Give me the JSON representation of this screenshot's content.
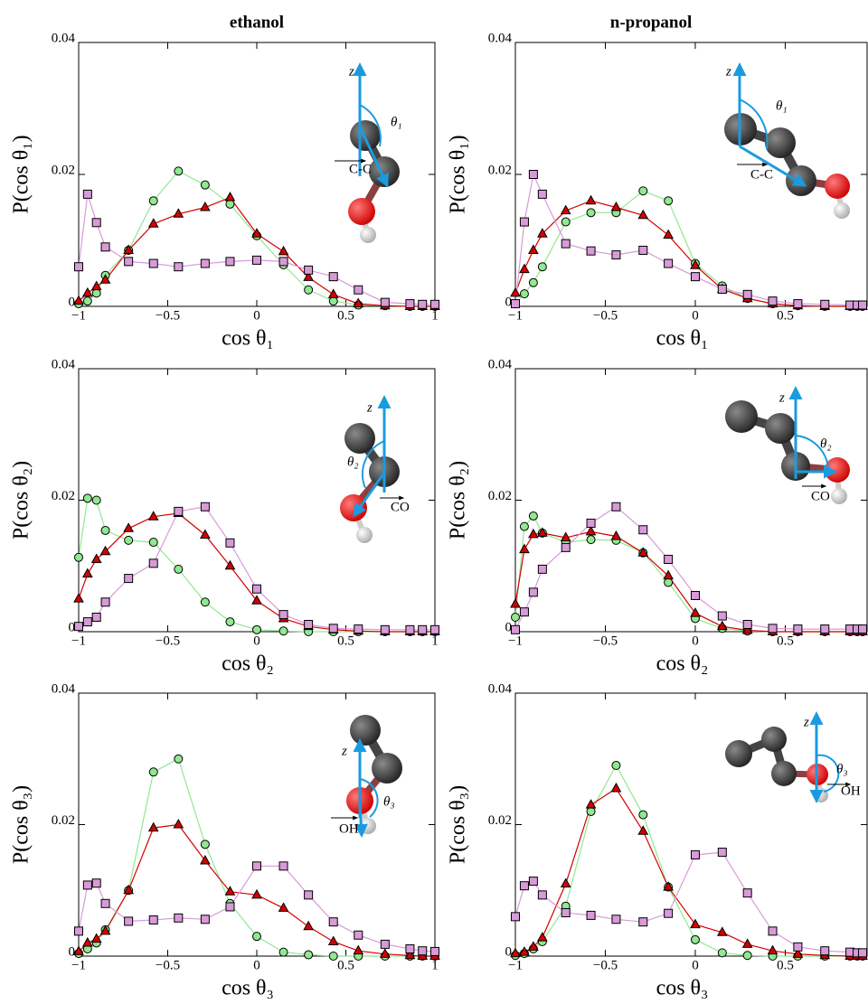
{
  "chart_data": [
    {
      "type": "line",
      "title": "ethanol",
      "xlabel": "cos θ₁",
      "ylabel": "P(cos θ₁)",
      "annotations": [
        "z",
        "θ₁",
        "C-C"
      ],
      "xlim": [
        -1,
        1
      ],
      "ylim": [
        0,
        0.04
      ],
      "xticks": [
        {
          "value": -1,
          "label": "−1"
        },
        {
          "value": -0.5,
          "label": "−0.5"
        },
        0,
        0.5,
        1
      ],
      "yticks": [
        0,
        0.02,
        0.04
      ],
      "x": [
        -1,
        -0.95,
        -0.9,
        -0.85,
        -0.72,
        -0.58,
        -0.44,
        -0.29,
        -0.15,
        0,
        0.15,
        0.29,
        0.43,
        0.57,
        0.72,
        0.86,
        0.93,
        1
      ],
      "series": [
        {
          "color": "#90e890",
          "marker": "circle",
          "values": [
            0.0004,
            0.0008,
            0.002,
            0.0047,
            0.0085,
            0.016,
            0.0205,
            0.0184,
            0.0155,
            0.0107,
            0.0063,
            0.0025,
            0.0008,
            0.0002,
            0.0001,
            0,
            0,
            0
          ]
        },
        {
          "color": "#d40000",
          "marker": "triangle",
          "values": [
            0.0008,
            0.002,
            0.003,
            0.004,
            0.0085,
            0.0125,
            0.014,
            0.015,
            0.0165,
            0.011,
            0.0083,
            0.0044,
            0.0018,
            0.0004,
            0.0001,
            0,
            0,
            0
          ]
        },
        {
          "color": "#d89ad8",
          "marker": "square",
          "values": [
            0.006,
            0.017,
            0.0127,
            0.009,
            0.0068,
            0.0065,
            0.006,
            0.0065,
            0.0068,
            0.007,
            0.0068,
            0.0055,
            0.0045,
            0.0025,
            0.0006,
            0.0004,
            0.0003,
            0.0003
          ]
        }
      ]
    },
    {
      "type": "line",
      "title": "n-propanol",
      "xlabel": "cos θ₁",
      "ylabel": "P(cos θ₁)",
      "annotations": [
        "z",
        "θ₁",
        "C-C"
      ],
      "xlim": [
        -1,
        0.955
      ],
      "ylim": [
        0,
        0.04
      ],
      "xticks": [
        {
          "value": -1,
          "label": "−1"
        },
        {
          "value": -0.5,
          "label": "−0.5"
        },
        0,
        0.5
      ],
      "yticks": [
        0,
        0.02,
        0.04
      ],
      "x": [
        -1,
        -0.95,
        -0.9,
        -0.85,
        -0.72,
        -0.58,
        -0.44,
        -0.29,
        -0.15,
        0,
        0.15,
        0.29,
        0.43,
        0.57,
        0.72,
        0.86,
        0.9,
        0.93
      ],
      "series": [
        {
          "color": "#90e890",
          "marker": "circle",
          "values": [
            0.0004,
            0.0019,
            0.0036,
            0.006,
            0.0128,
            0.0142,
            0.0142,
            0.0175,
            0.016,
            0.0065,
            0.0031,
            0.0012,
            0.0004,
            0.0001,
            0,
            0,
            0,
            0
          ]
        },
        {
          "color": "#d40000",
          "marker": "triangle",
          "values": [
            0.002,
            0.0056,
            0.0085,
            0.011,
            0.0145,
            0.016,
            0.015,
            0.0138,
            0.0108,
            0.0062,
            0.0026,
            0.0012,
            0.0004,
            0.0001,
            0,
            0,
            0,
            0
          ]
        },
        {
          "color": "#d89ad8",
          "marker": "square",
          "values": [
            0.0004,
            0.0128,
            0.02,
            0.017,
            0.0095,
            0.0084,
            0.0078,
            0.0085,
            0.0065,
            0.0045,
            0.0026,
            0.0018,
            0.0008,
            0.0004,
            0.0003,
            0.0002,
            0.0002,
            0.0002
          ]
        }
      ]
    },
    {
      "type": "line",
      "xlabel": "cos θ₂",
      "ylabel": "P(cos θ₂)",
      "annotations": [
        "z",
        "θ₂",
        "CO"
      ],
      "xlim": [
        -1,
        1
      ],
      "ylim": [
        0,
        0.04
      ],
      "xticks": [
        {
          "value": -1,
          "label": "−1"
        },
        {
          "value": -0.5,
          "label": "−0.5"
        },
        0,
        0.5,
        1
      ],
      "yticks": [
        0,
        0.02,
        0.04
      ],
      "x": [
        -1,
        -0.95,
        -0.9,
        -0.85,
        -0.72,
        -0.58,
        -0.44,
        -0.29,
        -0.15,
        0,
        0.15,
        0.29,
        0.43,
        0.57,
        0.72,
        0.86,
        0.93,
        1
      ],
      "series": [
        {
          "color": "#90e890",
          "marker": "circle",
          "values": [
            0.0113,
            0.0203,
            0.02,
            0.0154,
            0.0139,
            0.0136,
            0.0095,
            0.0045,
            0.0015,
            0.0003,
            0.0001,
            0,
            0,
            0,
            0,
            0,
            0,
            0
          ]
        },
        {
          "color": "#d40000",
          "marker": "triangle",
          "values": [
            0.005,
            0.0088,
            0.011,
            0.0122,
            0.0157,
            0.0175,
            0.018,
            0.0147,
            0.01,
            0.0047,
            0.002,
            0.0008,
            0.0003,
            0.0001,
            0,
            0,
            0,
            0
          ]
        },
        {
          "color": "#d89ad8",
          "marker": "square",
          "values": [
            0.0008,
            0.0015,
            0.0022,
            0.0045,
            0.0081,
            0.0104,
            0.0183,
            0.019,
            0.0135,
            0.0065,
            0.0026,
            0.0011,
            0.0005,
            0.0004,
            0.0003,
            0.0003,
            0.0003,
            0.0003
          ]
        }
      ]
    },
    {
      "type": "line",
      "xlabel": "cos θ₂",
      "ylabel": "P(cos θ₂)",
      "annotations": [
        "z",
        "θ₂",
        "CO"
      ],
      "xlim": [
        -1,
        0.955
      ],
      "ylim": [
        0,
        0.04
      ],
      "xticks": [
        {
          "value": -1,
          "label": "−1"
        },
        {
          "value": -0.5,
          "label": "−0.5"
        },
        0,
        0.5
      ],
      "yticks": [
        0,
        0.02,
        0.04
      ],
      "x": [
        -1,
        -0.95,
        -0.9,
        -0.85,
        -0.72,
        -0.58,
        -0.44,
        -0.29,
        -0.15,
        0,
        0.15,
        0.29,
        0.43,
        0.57,
        0.72,
        0.86,
        0.9,
        0.93
      ],
      "series": [
        {
          "color": "#90e890",
          "marker": "circle",
          "values": [
            0.0022,
            0.016,
            0.0176,
            0.015,
            0.0136,
            0.014,
            0.0139,
            0.012,
            0.0075,
            0.002,
            0.0005,
            0.0001,
            0,
            0,
            0,
            0,
            0,
            0
          ]
        },
        {
          "color": "#d40000",
          "marker": "triangle",
          "values": [
            0.0042,
            0.0125,
            0.0148,
            0.015,
            0.0143,
            0.0152,
            0.0145,
            0.012,
            0.0085,
            0.0028,
            0.0008,
            0.0002,
            0,
            0,
            0,
            0,
            0,
            0
          ]
        },
        {
          "color": "#d89ad8",
          "marker": "square",
          "values": [
            0.0003,
            0.003,
            0.006,
            0.0095,
            0.0128,
            0.0165,
            0.019,
            0.0155,
            0.011,
            0.0055,
            0.0024,
            0.0011,
            0.0005,
            0.0004,
            0.0004,
            0.0004,
            0.0004,
            0.0004
          ]
        }
      ]
    },
    {
      "type": "line",
      "xlabel": "cos θ₃",
      "ylabel": "P(cos θ₃)",
      "annotations": [
        "z",
        "θ₃",
        "OH"
      ],
      "xlim": [
        -1,
        1
      ],
      "ylim": [
        0,
        0.04
      ],
      "xticks": [
        {
          "value": -1,
          "label": "−1"
        },
        {
          "value": -0.5,
          "label": "−0.5"
        },
        0,
        0.5,
        1
      ],
      "yticks": [
        0,
        0.02,
        0.04
      ],
      "x": [
        -1,
        -0.95,
        -0.9,
        -0.85,
        -0.72,
        -0.58,
        -0.44,
        -0.29,
        -0.15,
        0,
        0.15,
        0.29,
        0.43,
        0.57,
        0.72,
        0.86,
        0.93,
        1
      ],
      "series": [
        {
          "color": "#90e890",
          "marker": "circle",
          "values": [
            0.0004,
            0.0011,
            0.002,
            0.004,
            0.01,
            0.028,
            0.03,
            0.017,
            0.008,
            0.003,
            0.0006,
            0.0002,
            0,
            0,
            0,
            0,
            0,
            0
          ]
        },
        {
          "color": "#d40000",
          "marker": "triangle",
          "values": [
            0.0007,
            0.002,
            0.0026,
            0.0038,
            0.01,
            0.0195,
            0.02,
            0.0145,
            0.0098,
            0.0093,
            0.0073,
            0.0045,
            0.0022,
            0.0008,
            0.0003,
            0.0001,
            0,
            0
          ]
        },
        {
          "color": "#d89ad8",
          "marker": "square",
          "values": [
            0.0038,
            0.0108,
            0.0111,
            0.008,
            0.0053,
            0.0055,
            0.0058,
            0.0056,
            0.0075,
            0.0137,
            0.0137,
            0.0093,
            0.0052,
            0.0032,
            0.0018,
            0.0011,
            0.0008,
            0.0007
          ]
        }
      ]
    },
    {
      "type": "line",
      "xlabel": "cos θ₃",
      "ylabel": "P(cos θ₃)",
      "annotations": [
        "z",
        "θ₃",
        "OH"
      ],
      "xlim": [
        -1,
        0.955
      ],
      "ylim": [
        0,
        0.04
      ],
      "xticks": [
        {
          "value": -1,
          "label": "−1"
        },
        {
          "value": -0.5,
          "label": "−0.5"
        },
        0,
        0.5
      ],
      "yticks": [
        0,
        0.02,
        0.04
      ],
      "x": [
        -1,
        -0.95,
        -0.9,
        -0.85,
        -0.72,
        -0.58,
        -0.44,
        -0.29,
        -0.15,
        0,
        0.15,
        0.29,
        0.43,
        0.57,
        0.72,
        0.86,
        0.9,
        0.93
      ],
      "series": [
        {
          "color": "#90e890",
          "marker": "circle",
          "values": [
            0.0001,
            0.0004,
            0.0011,
            0.0022,
            0.0076,
            0.022,
            0.029,
            0.0215,
            0.0105,
            0.0025,
            0.0005,
            0.0001,
            0,
            0,
            0,
            0,
            0,
            0
          ]
        },
        {
          "color": "#d40000",
          "marker": "triangle",
          "values": [
            0.0004,
            0.0006,
            0.0014,
            0.0028,
            0.011,
            0.023,
            0.0255,
            0.019,
            0.0105,
            0.0048,
            0.0036,
            0.0018,
            0.0008,
            0.0003,
            0.0001,
            0,
            0,
            0
          ]
        },
        {
          "color": "#d89ad8",
          "marker": "square",
          "values": [
            0.006,
            0.0107,
            0.0114,
            0.0093,
            0.0066,
            0.0062,
            0.0056,
            0.0052,
            0.0065,
            0.0154,
            0.0158,
            0.0096,
            0.0038,
            0.0014,
            0.0008,
            0.0006,
            0.0005,
            0.0005
          ]
        }
      ]
    }
  ]
}
